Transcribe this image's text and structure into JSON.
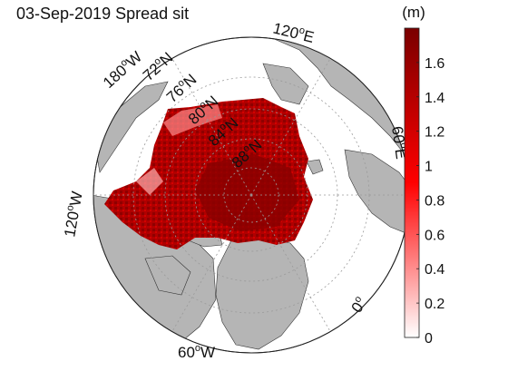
{
  "title": "03-Sep-2019 Spread sit",
  "colorbar": {
    "unit": "(m)",
    "ticks": [
      "0",
      "0.2",
      "0.4",
      "0.6",
      "0.8",
      "1",
      "1.2",
      "1.4",
      "1.6"
    ],
    "min": 0,
    "max": 1.8,
    "colors": {
      "low": "#ffffff",
      "mid": "#ff0000",
      "high": "#800000"
    }
  },
  "labels": {
    "lon_120e": {
      "deg": "120",
      "suffix": "E"
    },
    "lon_180w": {
      "deg": "180",
      "suffix": "W"
    },
    "lon_120w": {
      "deg": "120",
      "suffix": "W"
    },
    "lon_60w": {
      "deg": "60",
      "suffix": "W"
    },
    "lon_0": {
      "deg": "0",
      "suffix": ""
    },
    "lon_60e": {
      "deg": "60",
      "suffix": "E"
    },
    "lat_72n": {
      "deg": "72",
      "suffix": "N"
    },
    "lat_76n": {
      "deg": "76",
      "suffix": "N"
    },
    "lat_80n": {
      "deg": "80",
      "suffix": "N"
    },
    "lat_84n": {
      "deg": "84",
      "suffix": "N"
    },
    "lat_88n": {
      "deg": "88",
      "suffix": "N"
    }
  },
  "colors": {
    "land": "#b5b5b5",
    "ocean": "#ffffff",
    "grid": "#9a9a9a",
    "frame": "#222222"
  }
}
